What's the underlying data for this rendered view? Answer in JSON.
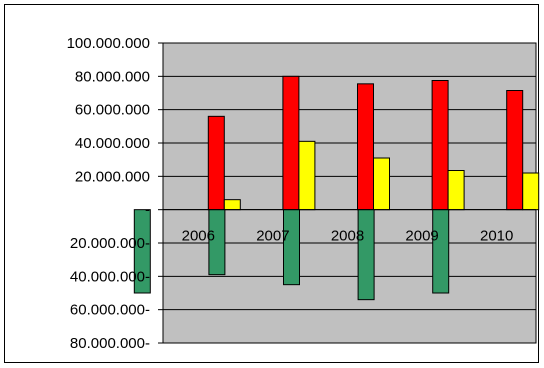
{
  "chart_data": {
    "type": "bar",
    "categories": [
      "2006",
      "2007",
      "2008",
      "2009",
      "2010"
    ],
    "series": [
      {
        "color": "#FF0000",
        "values": [
          56000000,
          80000000,
          75500000,
          77500000,
          71500000
        ]
      },
      {
        "color": "#FFFF00",
        "values": [
          6000000,
          41000000,
          31000000,
          23500000,
          22000000
        ]
      },
      {
        "color": "#339966",
        "values": [
          -50000000,
          -39000000,
          -45000000,
          -54000000,
          -50000000
        ]
      }
    ],
    "ylim": [
      -80000000,
      100000000
    ],
    "y_ticks": [
      100000000,
      80000000,
      60000000,
      40000000,
      20000000,
      0,
      -20000000,
      -40000000,
      -60000000,
      -80000000
    ],
    "y_tick_labels": [
      "100.000.000",
      "80.000.000",
      "60.000.000",
      "40.000.000",
      "20.000.000",
      "-",
      "20.000.000-",
      "40.000.000-",
      "60.000.000-",
      "80.000.000-"
    ],
    "plot_background": "#C0C0C0",
    "grid": true,
    "legend": false
  }
}
